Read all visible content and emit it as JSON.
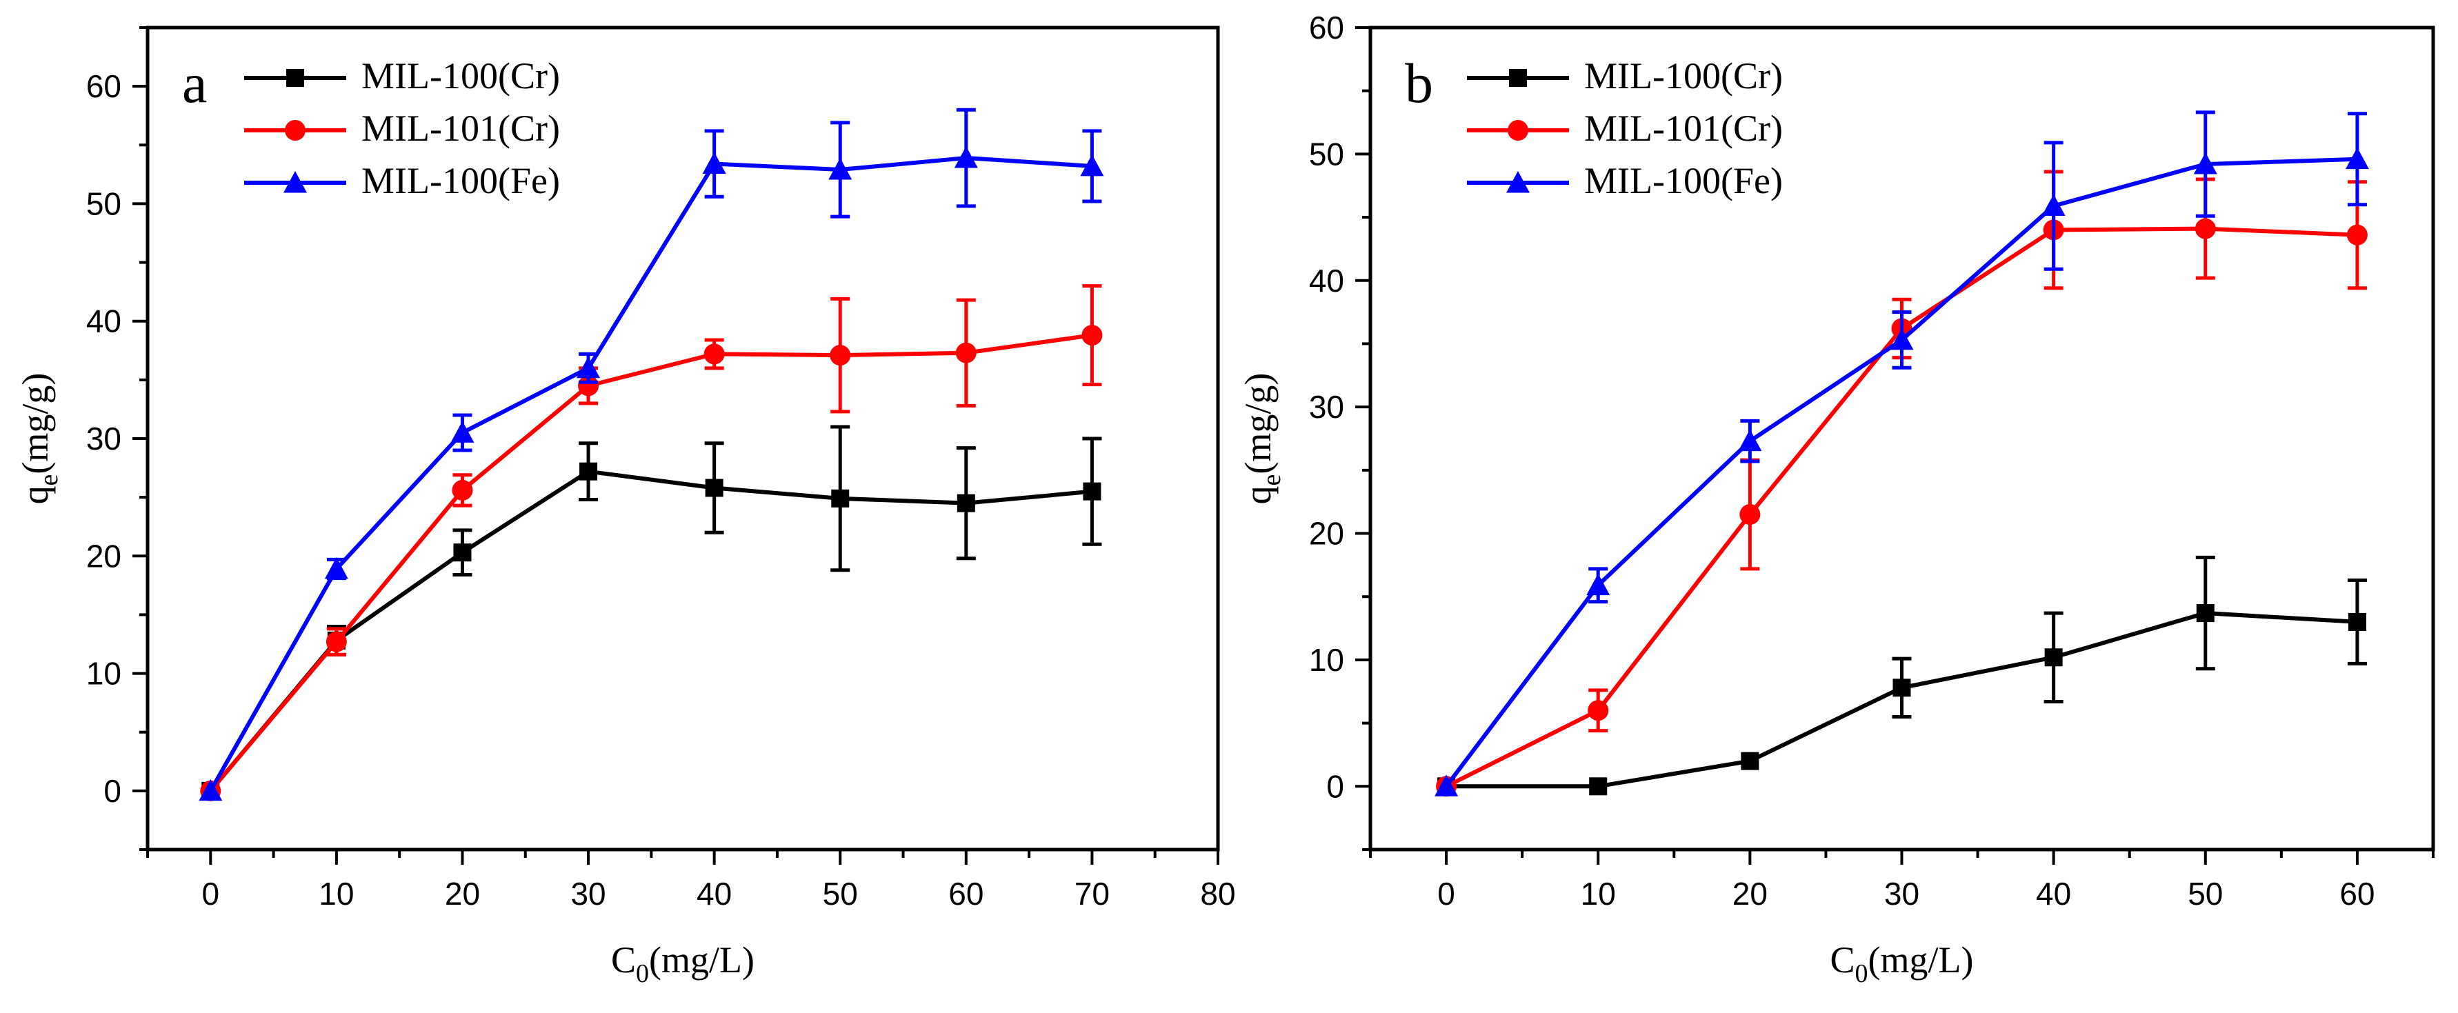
{
  "chart_data": [
    {
      "type": "line",
      "panel_label": "a",
      "xlabel": "C",
      "xlabel_sub": "0",
      "xlabel_unit": "(mg/L)",
      "ylabel": "q",
      "ylabel_sub": "e",
      "ylabel_unit": "(mg/g)",
      "xlim": [
        -5,
        80
      ],
      "ylim": [
        -5,
        65
      ],
      "xticks": [
        0,
        10,
        20,
        30,
        40,
        50,
        60,
        70,
        80
      ],
      "yticks": [
        0,
        10,
        20,
        30,
        40,
        50,
        60
      ],
      "legend_position": "top-left",
      "series": [
        {
          "name": "MIL-100(Cr)",
          "color": "#000000",
          "marker": "square",
          "x": [
            0,
            10,
            20,
            30,
            40,
            50,
            60,
            70
          ],
          "values": [
            0,
            12.8,
            20.3,
            27.2,
            25.8,
            24.9,
            24.5,
            25.5
          ],
          "errors": [
            0,
            1.2,
            1.9,
            2.4,
            3.8,
            6.1,
            4.7,
            4.5
          ]
        },
        {
          "name": "MIL-101(Cr)",
          "color": "#ff0000",
          "marker": "circle",
          "x": [
            0,
            10,
            20,
            30,
            40,
            50,
            60,
            70
          ],
          "values": [
            0,
            12.7,
            25.6,
            34.5,
            37.2,
            37.1,
            37.3,
            38.8
          ],
          "errors": [
            0,
            1.1,
            1.3,
            1.5,
            1.2,
            4.8,
            4.5,
            4.2
          ]
        },
        {
          "name": "MIL-100(Fe)",
          "color": "#0000ff",
          "marker": "triangle",
          "x": [
            0,
            10,
            20,
            30,
            40,
            50,
            60,
            70
          ],
          "values": [
            0,
            18.9,
            30.5,
            36.0,
            53.4,
            52.9,
            53.9,
            53.2
          ],
          "errors": [
            0,
            0.8,
            1.5,
            1.2,
            2.8,
            4.0,
            4.1,
            3.0
          ]
        }
      ]
    },
    {
      "type": "line",
      "panel_label": "b",
      "xlabel": "C",
      "xlabel_sub": "0",
      "xlabel_unit": "(mg/L)",
      "ylabel": "q",
      "ylabel_sub": "e",
      "ylabel_unit": "(mg/g)",
      "xlim": [
        -5,
        65
      ],
      "ylim": [
        -5,
        60
      ],
      "xticks": [
        0,
        10,
        20,
        30,
        40,
        50,
        60
      ],
      "yticks": [
        0,
        10,
        20,
        30,
        40,
        50,
        60
      ],
      "legend_position": "top-left",
      "series": [
        {
          "name": "MIL-100(Cr)",
          "color": "#000000",
          "marker": "square",
          "x": [
            0,
            10,
            20,
            30,
            40,
            50,
            60
          ],
          "values": [
            0,
            0,
            2.0,
            7.8,
            10.2,
            13.7,
            13.0
          ],
          "errors": [
            0,
            0,
            0,
            2.3,
            3.5,
            4.4,
            3.3
          ]
        },
        {
          "name": "MIL-101(Cr)",
          "color": "#ff0000",
          "marker": "circle",
          "x": [
            0,
            10,
            20,
            30,
            40,
            50,
            60
          ],
          "values": [
            0,
            6.0,
            21.5,
            36.2,
            44.0,
            44.1,
            43.6
          ],
          "errors": [
            0,
            1.6,
            4.3,
            2.3,
            4.6,
            3.9,
            4.2
          ]
        },
        {
          "name": "MIL-100(Fe)",
          "color": "#0000ff",
          "marker": "triangle",
          "x": [
            0,
            10,
            20,
            30,
            40,
            50,
            60
          ],
          "values": [
            0,
            15.9,
            27.3,
            35.3,
            45.9,
            49.2,
            49.6
          ],
          "errors": [
            0,
            1.3,
            1.6,
            2.2,
            5.0,
            4.1,
            3.6
          ]
        }
      ]
    }
  ]
}
